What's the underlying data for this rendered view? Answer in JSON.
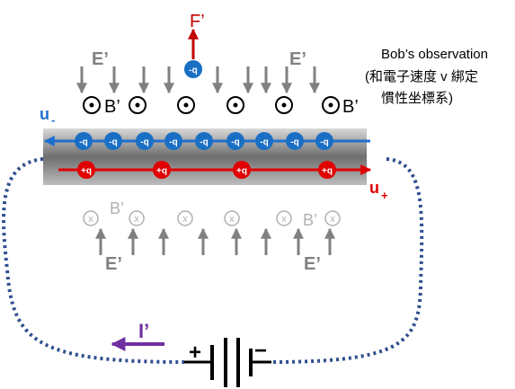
{
  "force_label": "F’",
  "observer": {
    "line1": "Bob’s observation",
    "line2": "(和電子速度 v 綁定",
    "line3": "慣性坐標系)"
  },
  "labels": {
    "e_prime": "E’",
    "b_prime": "B’",
    "u_minus_main": "u",
    "u_minus_sub": "-",
    "u_plus_main": "u",
    "u_plus_sub": "+",
    "current": "I’",
    "neg_charge": "-q",
    "pos_charge": "+q",
    "into_page": "x",
    "battery_plus": "+",
    "battery_minus": "−"
  },
  "colors": {
    "red": "#e00000",
    "dark_red": "#c00000",
    "blue": "#1f6fd1",
    "charge_blue": "#1a6fc4",
    "purple": "#7030a0",
    "gray_arrow": "#808080",
    "light_gray": "#b0b0b0",
    "wire": "#2f4f8f"
  },
  "icons": {
    "out_of_page": "circle-dot-icon",
    "into_page": "circle-x-icon",
    "battery": "battery-icon"
  }
}
